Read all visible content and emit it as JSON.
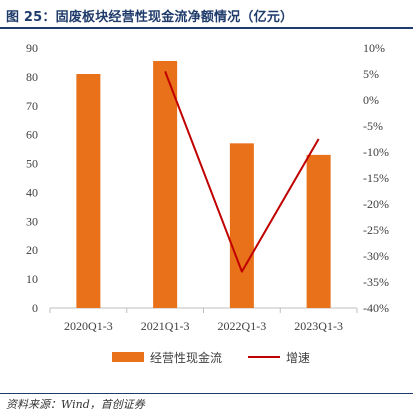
{
  "title": "图 25：固废板块经营性现金流净额情况（亿元）",
  "source": "资料来源：Wind，首创证券",
  "colors": {
    "bar": "#E8711A",
    "line": "#C00000",
    "title": "#1f3b6b",
    "axis": "#bfbfbf"
  },
  "chart_data": {
    "type": "bar",
    "categories": [
      "2020Q1-3",
      "2021Q1-3",
      "2022Q1-3",
      "2023Q1-3"
    ],
    "series": [
      {
        "name": "经营性现金流",
        "type": "bar",
        "axis": "left",
        "values": [
          81,
          85.5,
          57,
          53
        ]
      },
      {
        "name": "增速",
        "type": "line",
        "axis": "right",
        "values": [
          null,
          5.5,
          -33,
          -7.5
        ]
      }
    ],
    "y_left": {
      "min": 0,
      "max": 90,
      "step": 10,
      "ticks": [
        "0",
        "10",
        "20",
        "30",
        "40",
        "50",
        "60",
        "70",
        "80",
        "90"
      ]
    },
    "y_right": {
      "min": -40,
      "max": 10,
      "step": 5,
      "ticks": [
        "-40%",
        "-35%",
        "-30%",
        "-25%",
        "-20%",
        "-15%",
        "-10%",
        "-5%",
        "0%",
        "5%",
        "10%"
      ]
    },
    "grid": false,
    "legend": {
      "placement": "bottom",
      "items": [
        "经营性现金流",
        "增速"
      ]
    }
  }
}
